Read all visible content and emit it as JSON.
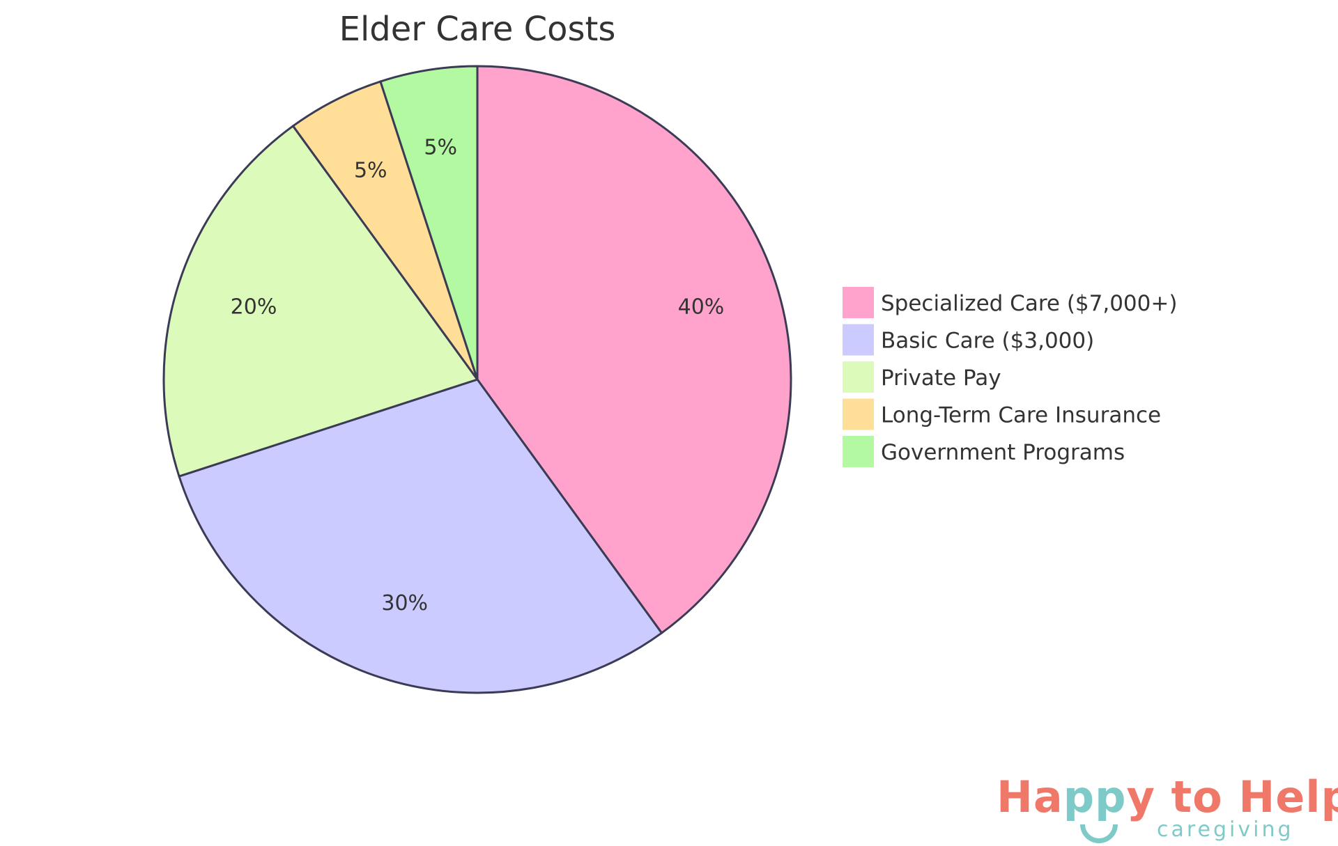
{
  "chart_data": {
    "type": "pie",
    "title": "Elder Care Costs",
    "categories": [
      "Specialized Care ($7,000+)",
      "Basic Care ($3,000)",
      "Private Pay",
      "Long-Term Care Insurance",
      "Government Programs"
    ],
    "values": [
      40,
      30,
      20,
      5,
      5
    ],
    "labels": [
      "40%",
      "30%",
      "20%",
      "5%",
      "5%"
    ],
    "colors": [
      "#ffa3cc",
      "#cbcbff",
      "#dcfab9",
      "#ffdf97",
      "#b2f9a1"
    ],
    "legend_position": "right"
  },
  "logo": {
    "main_a": "Ha",
    "main_b": "pp",
    "main_c": "y to Help",
    "sub": "caregiving"
  }
}
